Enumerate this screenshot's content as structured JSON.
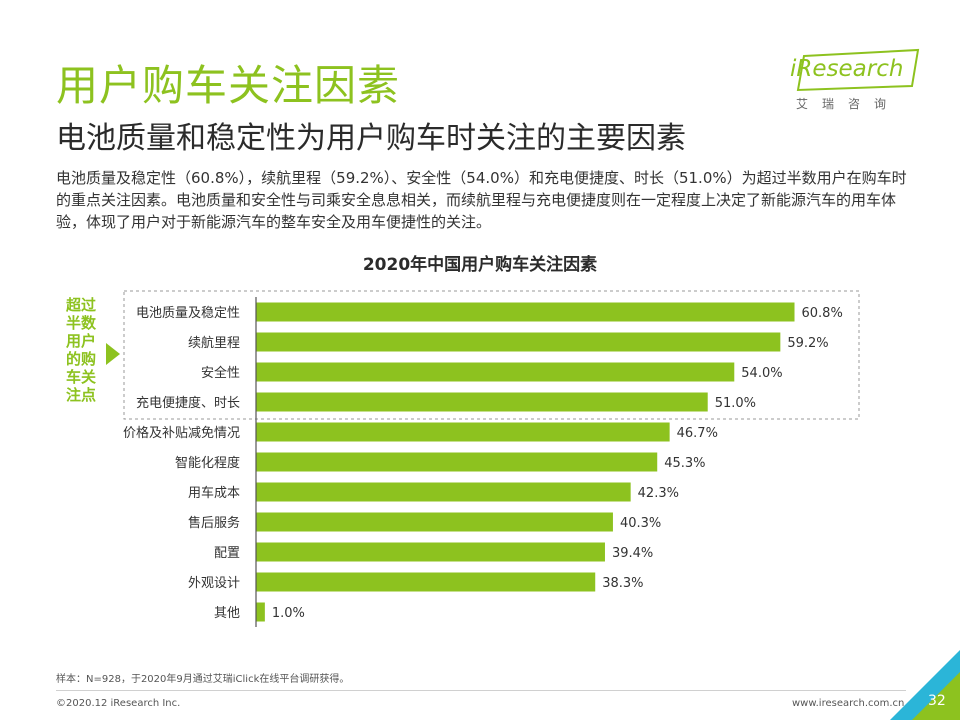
{
  "header": {
    "title": "用户购车关注因素",
    "subtitle": "电池质量和稳定性为用户购车时关注的主要因素",
    "description": "电池质量及稳定性（60.8%），续航里程（59.2%）、安全性（54.0%）和充电便捷度、时长（51.0%）为超过半数用户在购车时的重点关注因素。电池质量和安全性与司乘安全息息相关，而续航里程与充电便捷度则在一定程度上决定了新能源汽车的用车体验，体现了用户对于新能源汽车的整车安全及用车便捷性的关注。"
  },
  "logo": {
    "name": "iResearch",
    "cn": "艾瑞咨询"
  },
  "colors": {
    "accent": "#8dc21f",
    "text": "#2b2b2b",
    "dashed": "#999999"
  },
  "side_label": "超过半数用户的购车关注点",
  "chart_data": {
    "type": "bar",
    "orientation": "horizontal",
    "title": "2020年中国用户购车关注因素",
    "categories": [
      "电池质量及稳定性",
      "续航里程",
      "安全性",
      "充电便捷度、时长",
      "价格及补贴减免情况",
      "智能化程度",
      "用车成本",
      "售后服务",
      "配置",
      "外观设计",
      "其他"
    ],
    "values": [
      60.8,
      59.2,
      54.0,
      51.0,
      46.7,
      45.3,
      42.3,
      40.3,
      39.4,
      38.3,
      1.0
    ],
    "labels": [
      "60.8%",
      "59.2%",
      "54.0%",
      "51.0%",
      "46.7%",
      "45.3%",
      "42.3%",
      "40.3%",
      "39.4%",
      "38.3%",
      "1.0%"
    ],
    "highlighted_count": 4,
    "xlim": [
      0,
      70
    ],
    "xlabel": "",
    "ylabel": ""
  },
  "footer": {
    "note": "样本：N=928，于2020年9月通过艾瑞iClick在线平台调研获得。",
    "copyright": "©2020.12 iResearch Inc.",
    "website": "www.iresearch.com.cn",
    "page": "32"
  }
}
